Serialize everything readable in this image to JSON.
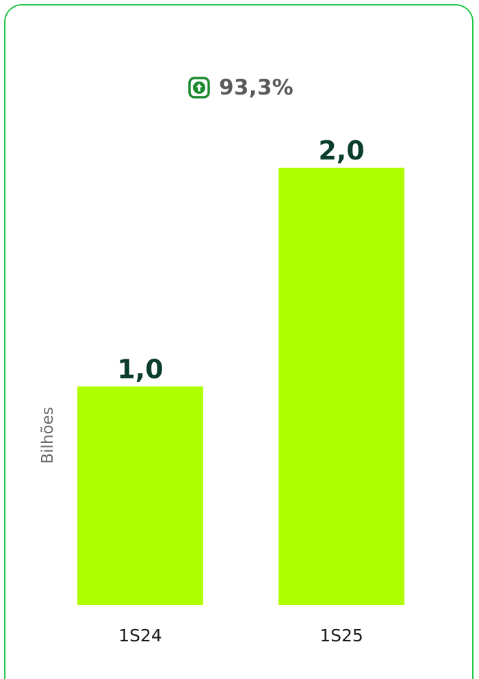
{
  "growth": {
    "icon": "arrow-up-icon",
    "value": "93,3%",
    "color": "#1a8a2e"
  },
  "chart_data": {
    "type": "bar",
    "categories": [
      "1S24",
      "1S25"
    ],
    "values": [
      1.0,
      2.0
    ],
    "value_labels": [
      "1,0",
      "2,0"
    ],
    "title": "",
    "xlabel": "",
    "ylabel": "Bilhões",
    "ylim": [
      0,
      2.0
    ],
    "grid": false,
    "bar_color": "#b0ff00",
    "value_label_color": "#0a3d2a",
    "border_color": "#1fc94a"
  }
}
